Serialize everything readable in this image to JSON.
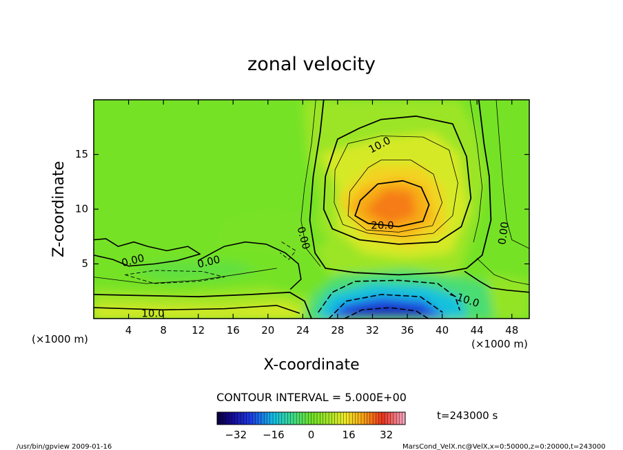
{
  "chart_data": {
    "type": "heatmap",
    "title": "zonal velocity",
    "xlabel": "X-coordinate",
    "ylabel": "Z-coordinate",
    "x_units": "(×1000 m)",
    "y_units": "(×1000 m)",
    "xlim": [
      0,
      50
    ],
    "ylim": [
      0,
      20
    ],
    "x_ticks": [
      "4",
      "8",
      "12",
      "16",
      "20",
      "24",
      "28",
      "32",
      "36",
      "40",
      "44",
      "48"
    ],
    "y_ticks": [
      "5",
      "10",
      "15"
    ],
    "contour_labels": [
      "10.0",
      "20.0",
      "0.00",
      "0.00",
      "0.00",
      "0.00",
      "-10.0",
      "10.0"
    ],
    "contour_interval_text": "CONTOUR INTERVAL = 5.000E+00",
    "colorbar": {
      "range": [
        -40,
        40
      ],
      "ticks": [
        "-32",
        "-16",
        "0",
        "16",
        "32"
      ]
    },
    "time_label": "t=243000 s",
    "field_features": [
      {
        "kind": "max",
        "x": 34,
        "z": 10.5,
        "value": 24
      },
      {
        "kind": "min",
        "x": 32,
        "z": 0.5,
        "value": -30
      }
    ]
  },
  "footer": {
    "left": "/usr/bin/gpview   2009-01-16",
    "right": "MarsCond_VelX.nc@VelX,x=0:50000,z=0:20000,t=243000"
  }
}
